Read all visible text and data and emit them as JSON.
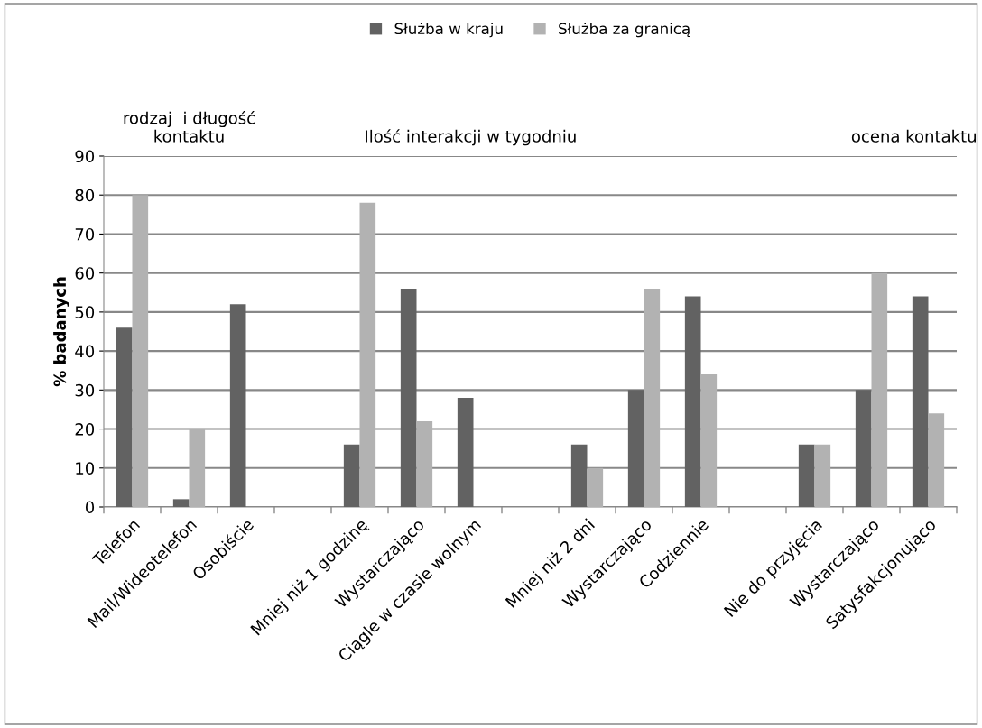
{
  "chart_data": {
    "type": "bar",
    "ylabel": "% badanych",
    "categories": [
      "Telefon",
      "Mail/Wideotelefon",
      "Osobiście",
      null,
      "Mniej niż 1 godzinę",
      "Wystarczająco",
      "Ciągle w czasie wolnym",
      null,
      "Mniej niż 2 dni",
      "Wystarczająco",
      "Codziennie",
      null,
      "Nie do przyjęcia",
      "Wystarczająco",
      "Satysfakcjonująco"
    ],
    "series": [
      {
        "name": "Służba w kraju",
        "color": "#626262",
        "values": [
          46,
          2,
          52,
          null,
          16,
          56,
          28,
          null,
          16,
          30,
          54,
          null,
          16,
          30,
          54
        ]
      },
      {
        "name": "Służba za granicą",
        "color": "#b2b2b2",
        "values": [
          80,
          20,
          null,
          null,
          78,
          22,
          null,
          null,
          10,
          56,
          34,
          null,
          16,
          60,
          24
        ]
      }
    ],
    "ylim": [
      0,
      90
    ],
    "yticks": [
      0,
      10,
      20,
      30,
      40,
      50,
      60,
      70,
      80,
      90
    ],
    "grid": "y",
    "legend": "top",
    "annotations": [
      "rodzaj  i długość\nkontaktu",
      "Ilość interakcji w tygodniu",
      "ocena kontaktu"
    ]
  }
}
